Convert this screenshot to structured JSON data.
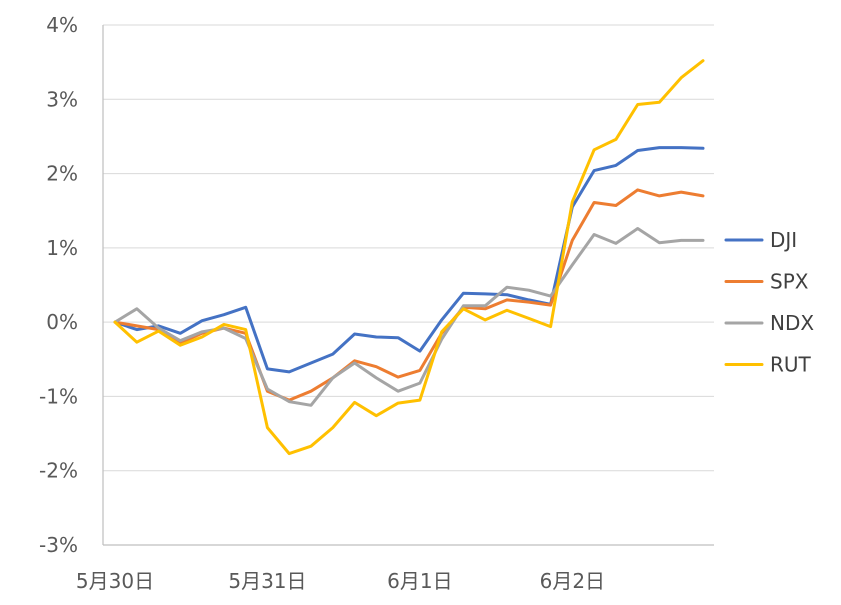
{
  "chart_data": {
    "type": "line",
    "title": "",
    "xlabel": "",
    "ylabel": "",
    "ylim": [
      -3,
      4
    ],
    "y_ticks": [
      "4%",
      "3%",
      "2%",
      "1%",
      "0%",
      "-1%",
      "-2%",
      "-3%"
    ],
    "y_tick_values": [
      4,
      3,
      2,
      1,
      0,
      -1,
      -2,
      -3
    ],
    "x_tick_labels": [
      "5月30日",
      "5月31日",
      "6月1日",
      "6月2日"
    ],
    "x_tick_indices": [
      0,
      7,
      14,
      21
    ],
    "grid": true,
    "legend_position": "right",
    "series": [
      {
        "name": "DJI",
        "color": "#4472c4",
        "values": [
          0,
          -0.1,
          -0.05,
          -0.15,
          0.02,
          0.1,
          0.2,
          -0.63,
          -0.67,
          -0.55,
          -0.43,
          -0.16,
          -0.2,
          -0.21,
          -0.39,
          0.03,
          0.39,
          0.38,
          0.37,
          0.3,
          0.24,
          1.55,
          2.04,
          2.11,
          2.31,
          2.35,
          2.35,
          2.34
        ]
      },
      {
        "name": "SPX",
        "color": "#ed7d31",
        "values": [
          0,
          -0.05,
          -0.1,
          -0.28,
          -0.15,
          -0.08,
          -0.15,
          -0.93,
          -1.05,
          -0.93,
          -0.75,
          -0.52,
          -0.6,
          -0.74,
          -0.65,
          -0.15,
          0.2,
          0.18,
          0.3,
          0.27,
          0.23,
          1.1,
          1.61,
          1.57,
          1.78,
          1.7,
          1.75,
          1.7
        ]
      },
      {
        "name": "NDX",
        "color": "#a5a5a5",
        "values": [
          0,
          0.18,
          -0.08,
          -0.25,
          -0.13,
          -0.08,
          -0.22,
          -0.9,
          -1.07,
          -1.12,
          -0.75,
          -0.55,
          -0.75,
          -0.93,
          -0.82,
          -0.23,
          0.22,
          0.22,
          0.47,
          0.43,
          0.35,
          0.77,
          1.18,
          1.06,
          1.26,
          1.07,
          1.1,
          1.1
        ]
      },
      {
        "name": "RUT",
        "color": "#ffc000",
        "values": [
          0,
          -0.27,
          -0.12,
          -0.31,
          -0.2,
          -0.03,
          -0.1,
          -1.42,
          -1.77,
          -1.67,
          -1.42,
          -1.08,
          -1.26,
          -1.09,
          -1.05,
          -0.13,
          0.18,
          0.03,
          0.16,
          0.05,
          -0.06,
          1.62,
          2.32,
          2.46,
          2.93,
          2.96,
          3.29,
          3.52
        ]
      }
    ]
  }
}
